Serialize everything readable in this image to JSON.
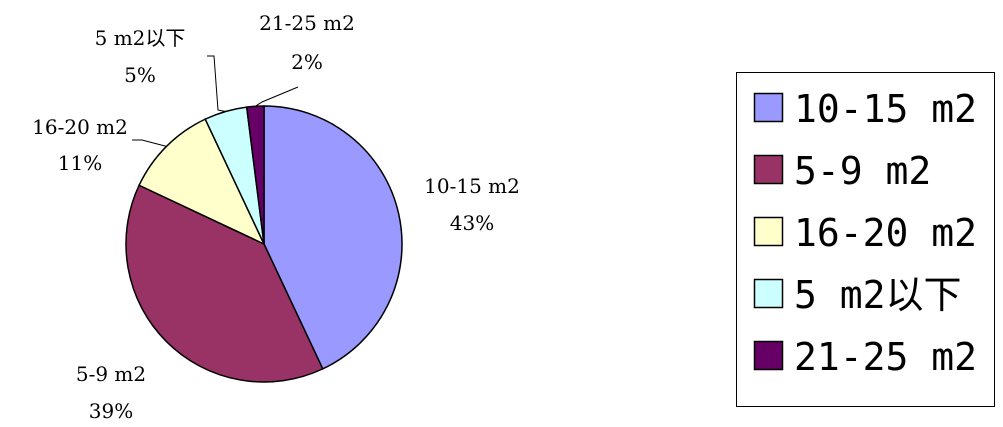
{
  "chart_data": {
    "type": "pie",
    "title": "",
    "slices": [
      {
        "label": "10-15 m2",
        "value": 43,
        "pct": "43%",
        "color": "#9999ff"
      },
      {
        "label": "5-9 m2",
        "value": 39,
        "pct": "39%",
        "color": "#993366"
      },
      {
        "label": "16-20 m2",
        "value": 11,
        "pct": "11%",
        "color": "#ffffcc"
      },
      {
        "label": "5 m2以下",
        "value": 5,
        "pct": "5%",
        "color": "#ccffff"
      },
      {
        "label": "21-25 m2",
        "value": 2,
        "pct": "2%",
        "color": "#660066"
      }
    ],
    "legend_position": "right"
  }
}
